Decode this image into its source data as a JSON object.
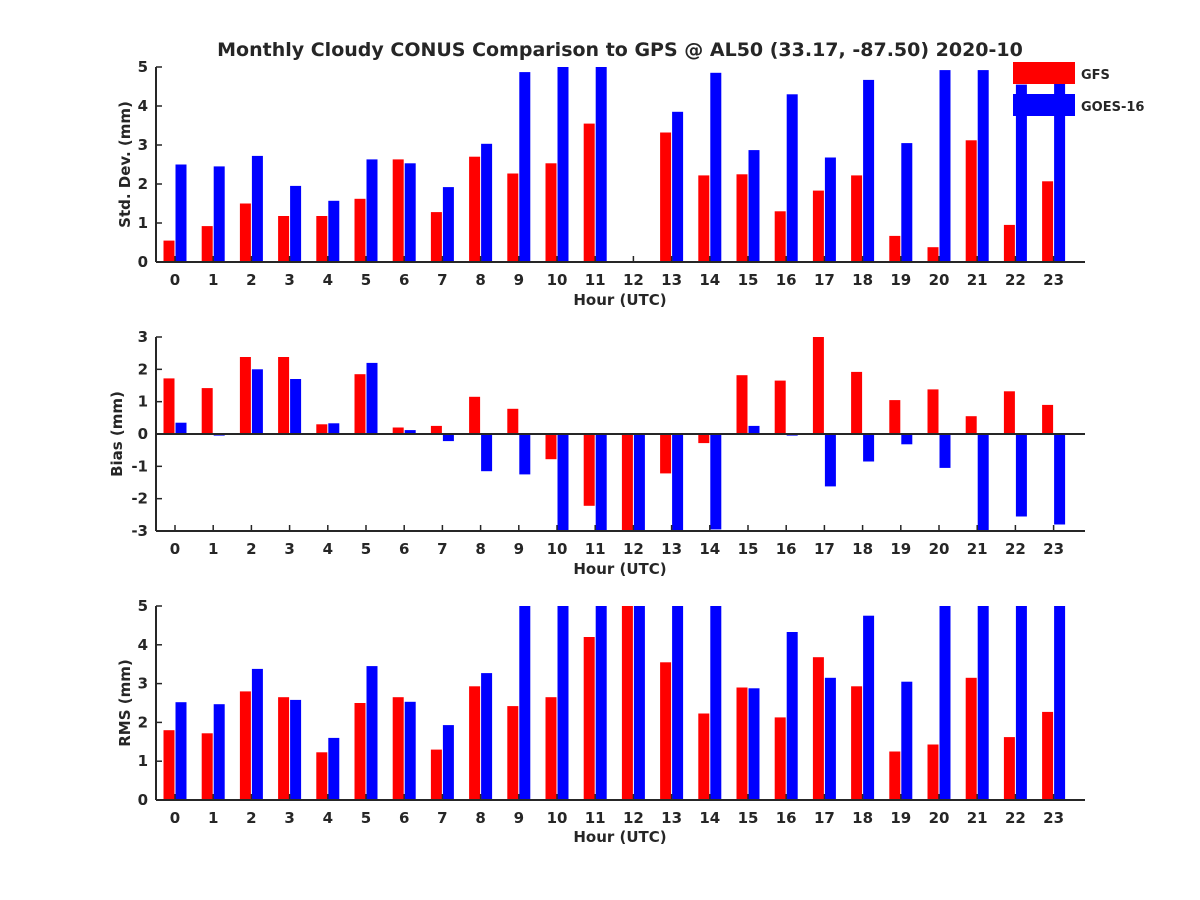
{
  "colors": {
    "gfs": "#ff0000",
    "goes": "#0000ff",
    "axis": "#262626",
    "background": "#ffffff"
  },
  "legend": [
    {
      "name": "GFS",
      "color": "#ff0000"
    },
    {
      "name": "GOES-16",
      "color": "#0000ff"
    }
  ],
  "chart_data": [
    {
      "type": "bar",
      "title": "Monthly Cloudy CONUS Comparison to GPS @ AL50 (33.17, -87.50) 2020-10",
      "xlabel": "Hour (UTC)",
      "ylabel": "Std. Dev. (mm)",
      "ylim": [
        0,
        5
      ],
      "yticks": [
        "0",
        "1",
        "2",
        "3",
        "4",
        "5"
      ],
      "categories": [
        "0",
        "1",
        "2",
        "3",
        "4",
        "5",
        "6",
        "7",
        "8",
        "9",
        "10",
        "11",
        "12",
        "13",
        "14",
        "15",
        "16",
        "17",
        "18",
        "19",
        "20",
        "21",
        "22",
        "23"
      ],
      "series": [
        {
          "name": "GFS",
          "values": [
            0.55,
            0.92,
            1.5,
            1.18,
            1.18,
            1.62,
            2.63,
            1.28,
            2.7,
            2.27,
            2.53,
            3.55,
            0,
            3.32,
            2.22,
            2.25,
            1.3,
            1.83,
            2.22,
            0.67,
            0.38,
            3.12,
            0.95,
            2.07
          ]
        },
        {
          "name": "GOES-16",
          "values": [
            2.5,
            2.45,
            2.72,
            1.95,
            1.57,
            2.63,
            2.53,
            1.92,
            3.03,
            4.87,
            5.0,
            5.0,
            0,
            3.85,
            4.85,
            2.87,
            4.3,
            2.68,
            4.67,
            3.05,
            4.92,
            4.92,
            4.55,
            4.58
          ]
        }
      ],
      "legend_position": "top-right"
    },
    {
      "type": "bar",
      "title": "",
      "xlabel": "Hour (UTC)",
      "ylabel": "Bias (mm)",
      "ylim": [
        -3,
        3
      ],
      "yticks": [
        "-3",
        "-2",
        "-1",
        "0",
        "1",
        "2",
        "3"
      ],
      "categories": [
        "0",
        "1",
        "2",
        "3",
        "4",
        "5",
        "6",
        "7",
        "8",
        "9",
        "10",
        "11",
        "12",
        "13",
        "14",
        "15",
        "16",
        "17",
        "18",
        "19",
        "20",
        "21",
        "22",
        "23"
      ],
      "series": [
        {
          "name": "GFS",
          "values": [
            1.72,
            1.42,
            2.38,
            2.38,
            0.3,
            1.85,
            0.2,
            0.25,
            1.15,
            0.78,
            -0.78,
            -2.22,
            -3.0,
            -1.22,
            -0.28,
            1.82,
            1.65,
            3.0,
            1.92,
            1.05,
            1.38,
            0.55,
            1.32,
            0.9
          ]
        },
        {
          "name": "GOES-16",
          "values": [
            0.35,
            -0.05,
            2.0,
            1.7,
            0.33,
            2.2,
            0.12,
            -0.22,
            -1.15,
            -1.25,
            -3.0,
            -3.0,
            -3.0,
            -3.0,
            -2.95,
            0.25,
            -0.05,
            -1.62,
            -0.85,
            -0.32,
            -1.05,
            -3.0,
            -2.55,
            -2.8
          ]
        }
      ]
    },
    {
      "type": "bar",
      "title": "",
      "xlabel": "Hour (UTC)",
      "ylabel": "RMS (mm)",
      "ylim": [
        0,
        5
      ],
      "yticks": [
        "0",
        "1",
        "2",
        "3",
        "4",
        "5"
      ],
      "categories": [
        "0",
        "1",
        "2",
        "3",
        "4",
        "5",
        "6",
        "7",
        "8",
        "9",
        "10",
        "11",
        "12",
        "13",
        "14",
        "15",
        "16",
        "17",
        "18",
        "19",
        "20",
        "21",
        "22",
        "23"
      ],
      "series": [
        {
          "name": "GFS",
          "values": [
            1.8,
            1.72,
            2.8,
            2.65,
            1.23,
            2.5,
            2.65,
            1.3,
            2.93,
            2.42,
            2.65,
            4.2,
            5.0,
            3.55,
            2.23,
            2.9,
            2.13,
            3.68,
            2.93,
            1.25,
            1.43,
            3.15,
            1.62,
            2.27
          ]
        },
        {
          "name": "GOES-16",
          "values": [
            2.52,
            2.47,
            3.38,
            2.58,
            1.6,
            3.45,
            2.53,
            1.93,
            3.27,
            5.0,
            5.0,
            5.0,
            5.0,
            5.0,
            5.0,
            2.88,
            4.33,
            3.15,
            4.75,
            3.05,
            5.0,
            5.0,
            5.0,
            5.0
          ]
        }
      ]
    }
  ]
}
